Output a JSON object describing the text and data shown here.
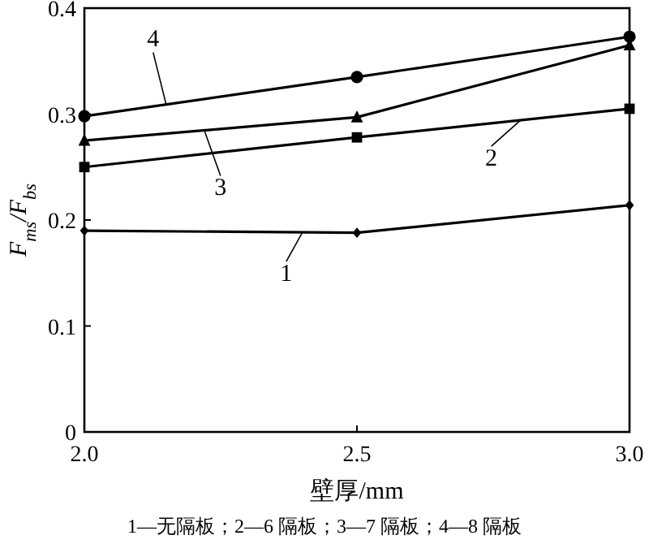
{
  "chart_data": {
    "type": "line",
    "x": [
      2.0,
      2.5,
      3.0
    ],
    "series": [
      {
        "name": "1",
        "color": "#000000",
        "marker": "diamond",
        "values": [
          0.19,
          0.188,
          0.214
        ]
      },
      {
        "name": "2",
        "color": "#000000",
        "marker": "square",
        "values": [
          0.25,
          0.278,
          0.305
        ]
      },
      {
        "name": "3",
        "color": "#000000",
        "marker": "triangle",
        "values": [
          0.275,
          0.297,
          0.365
        ]
      },
      {
        "name": "4",
        "color": "#000000",
        "marker": "circle",
        "values": [
          0.298,
          0.335,
          0.373
        ]
      }
    ],
    "xlim": [
      2.0,
      3.0
    ],
    "xticks": [
      {
        "value": 2.0,
        "label": "2.0"
      },
      {
        "value": 2.5,
        "label": "2.5"
      },
      {
        "value": 3.0,
        "label": "3.0"
      }
    ],
    "ylim": [
      0,
      0.4
    ],
    "yticks": [
      0,
      0.1,
      0.2,
      0.3,
      0.4
    ],
    "xlabel": "壁厚/mm",
    "ylabel": "F$_{ms}$/F$_{bs}$",
    "annotations": [
      "1—无隔板；2—6 隔板；3—7 隔板；4—8 隔板"
    ],
    "grid": false,
    "legend": "center",
    "line_style": "solid"
  }
}
